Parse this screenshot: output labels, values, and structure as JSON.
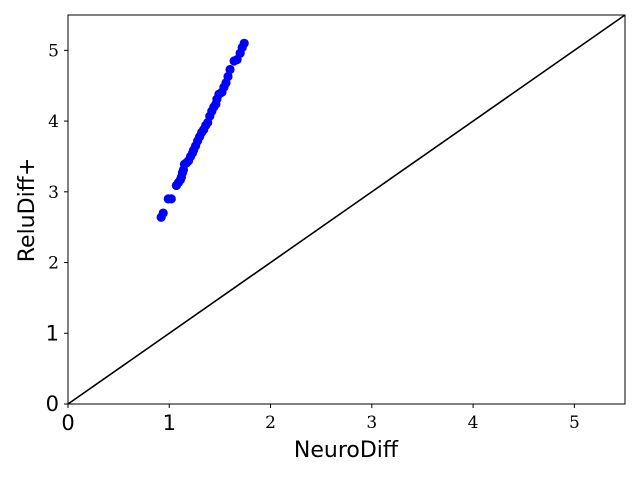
{
  "chart_data": {
    "type": "scatter",
    "title": "",
    "xlabel": "NeuroDiff",
    "ylabel": "ReluDiff+",
    "xlim": [
      0,
      5.5
    ],
    "ylim": [
      0,
      5.5
    ],
    "x_ticks": [
      {
        "value": 0,
        "label": "0"
      },
      {
        "value": 1,
        "label": "1"
      },
      {
        "value": 2,
        "label": "2"
      },
      {
        "value": 3,
        "label": "3"
      },
      {
        "value": 4,
        "label": "4"
      },
      {
        "value": 5,
        "label": "5"
      }
    ],
    "y_ticks": [
      {
        "value": 0,
        "label": "0"
      },
      {
        "value": 1,
        "label": "1"
      },
      {
        "value": 2,
        "label": "2"
      },
      {
        "value": 3,
        "label": "3"
      },
      {
        "value": 4,
        "label": "4"
      },
      {
        "value": 5,
        "label": "5"
      }
    ],
    "grid": false,
    "legend": "none",
    "reference_line": {
      "x": [
        0,
        5.5
      ],
      "y": [
        0,
        5.5
      ],
      "color": "#000000"
    },
    "series": [
      {
        "color": "#0000ff",
        "points": [
          [
            0.92,
            2.64
          ],
          [
            0.94,
            2.7
          ],
          [
            0.99,
            2.9
          ],
          [
            1.02,
            2.9
          ],
          [
            1.07,
            3.09
          ],
          [
            1.09,
            3.13
          ],
          [
            1.11,
            3.17
          ],
          [
            1.12,
            3.21
          ],
          [
            1.13,
            3.27
          ],
          [
            1.14,
            3.31
          ],
          [
            1.15,
            3.39
          ],
          [
            1.17,
            3.41
          ],
          [
            1.19,
            3.44
          ],
          [
            1.21,
            3.5
          ],
          [
            1.23,
            3.55
          ],
          [
            1.24,
            3.59
          ],
          [
            1.26,
            3.65
          ],
          [
            1.28,
            3.72
          ],
          [
            1.3,
            3.78
          ],
          [
            1.32,
            3.84
          ],
          [
            1.34,
            3.88
          ],
          [
            1.36,
            3.94
          ],
          [
            1.38,
            3.98
          ],
          [
            1.4,
            4.07
          ],
          [
            1.42,
            4.14
          ],
          [
            1.44,
            4.2
          ],
          [
            1.46,
            4.24
          ],
          [
            1.47,
            4.31
          ],
          [
            1.49,
            4.38
          ],
          [
            1.52,
            4.41
          ],
          [
            1.54,
            4.48
          ],
          [
            1.56,
            4.54
          ],
          [
            1.58,
            4.63
          ],
          [
            1.6,
            4.73
          ],
          [
            1.64,
            4.85
          ],
          [
            1.67,
            4.87
          ],
          [
            1.7,
            4.96
          ],
          [
            1.72,
            5.04
          ],
          [
            1.74,
            5.1
          ]
        ]
      }
    ]
  }
}
